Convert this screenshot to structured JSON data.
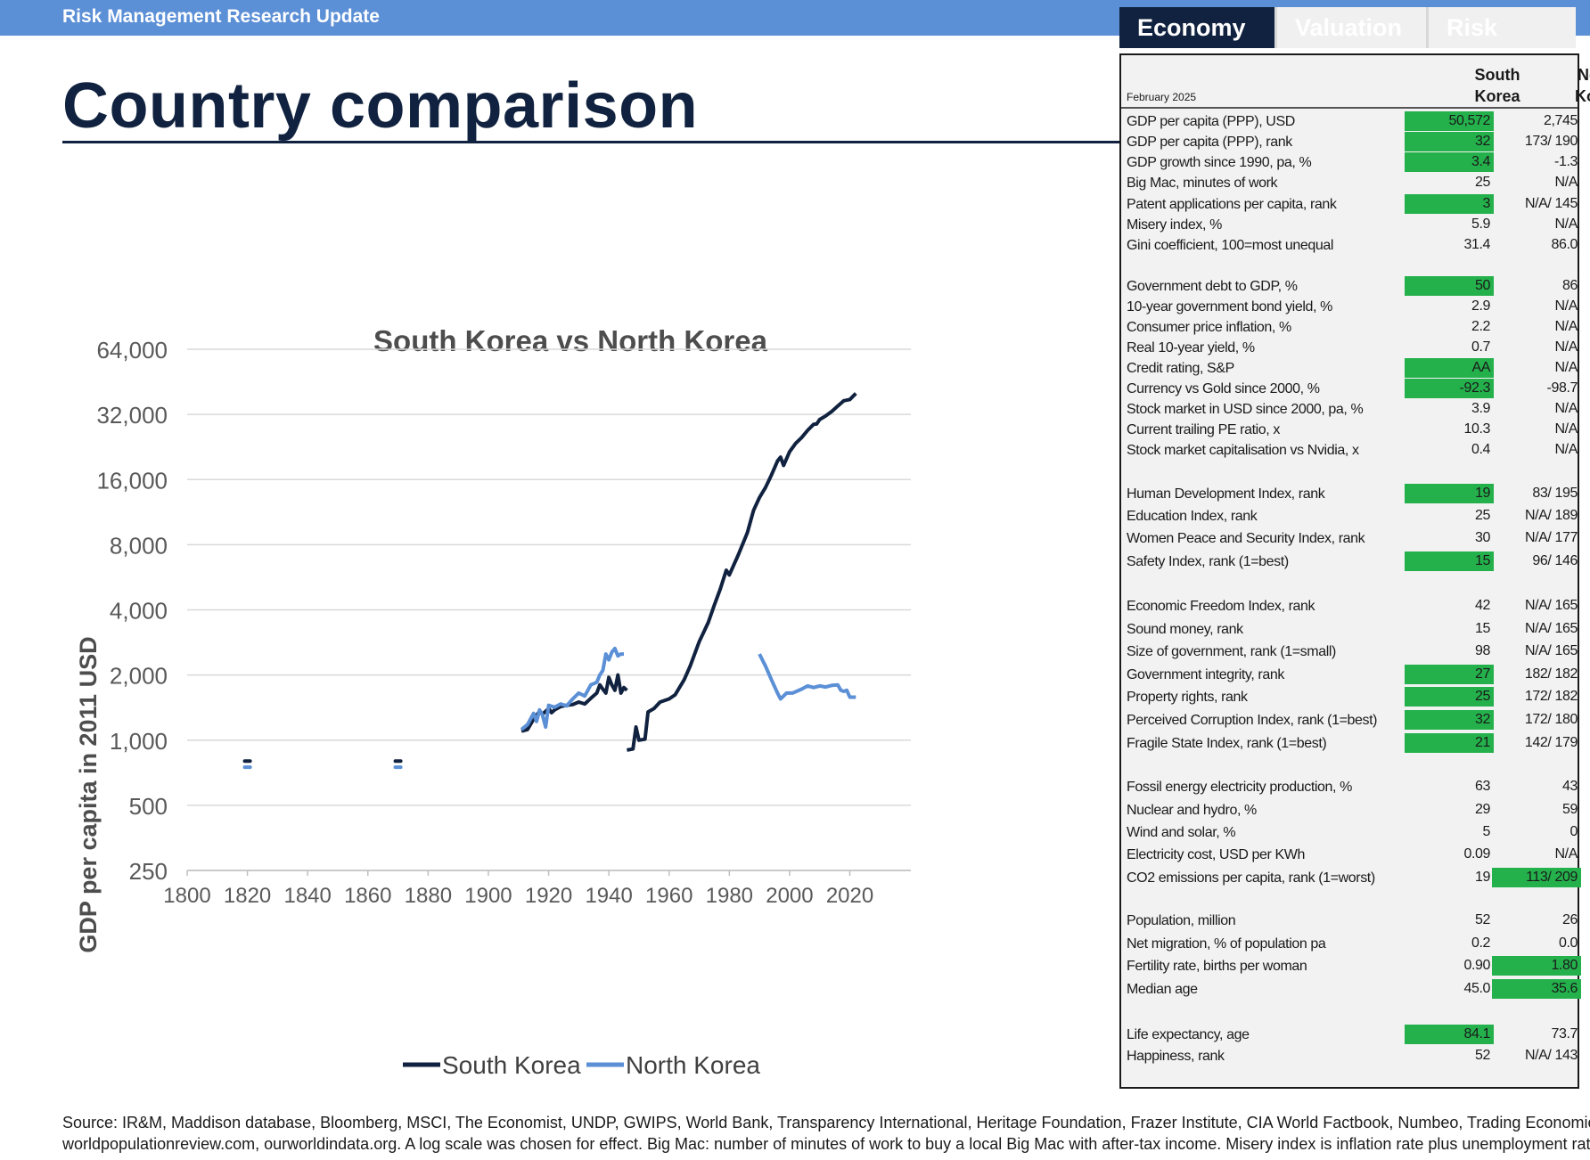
{
  "header": {
    "band_title": "Risk Management Research Update",
    "page_title": "Country comparison"
  },
  "tabs": [
    {
      "label": "Economy"
    },
    {
      "label": "Valuation"
    },
    {
      "label": "Risk"
    }
  ],
  "table": {
    "as_of": "February 2025",
    "col1": "South Korea",
    "col2": "North Korea",
    "col1_l1": "South",
    "col1_l2": "Korea",
    "col2_l1": "North",
    "col2_l2": "Korea",
    "rows": [
      {
        "label": "GDP per capita (PPP), USD",
        "sk": "50,572",
        "nk": "2,745",
        "hl": "sk"
      },
      {
        "label": "GDP per capita (PPP), rank",
        "sk": "32",
        "nk": "173/ 190",
        "hl": "sk"
      },
      {
        "label": "GDP growth since 1990, pa, %",
        "sk": "3.4",
        "nk": "-1.3",
        "hl": "sk"
      },
      {
        "label": "Big Mac, minutes of work",
        "sk": "25",
        "nk": "N/A",
        "hl": ""
      },
      {
        "label": "Patent applications per capita, rank",
        "sk": "3",
        "nk": "N/A/ 145",
        "hl": "sk"
      },
      {
        "label": "Misery index, %",
        "sk": "5.9",
        "nk": "N/A",
        "hl": ""
      },
      {
        "label": "Gini coefficient, 100=most unequal",
        "sk": "31.4",
        "nk": "86.0",
        "hl": ""
      },
      {
        "label": "Government debt to GDP, %",
        "sk": "50",
        "nk": "86",
        "hl": "sk"
      },
      {
        "label": "10-year government bond yield, %",
        "sk": "2.9",
        "nk": "N/A",
        "hl": ""
      },
      {
        "label": "Consumer price inflation, %",
        "sk": "2.2",
        "nk": "N/A",
        "hl": ""
      },
      {
        "label": "Real 10-year yield, %",
        "sk": "0.7",
        "nk": "N/A",
        "hl": ""
      },
      {
        "label": "Credit rating, S&P",
        "sk": "AA",
        "nk": "N/A",
        "hl": "sk"
      },
      {
        "label": "Currency vs Gold since 2000, %",
        "sk": "-92.3",
        "nk": "-98.7",
        "hl": "sk"
      },
      {
        "label": "Stock market in USD since 2000, pa, %",
        "sk": "3.9",
        "nk": "N/A",
        "hl": ""
      },
      {
        "label": "Current trailing PE ratio, x",
        "sk": "10.3",
        "nk": "N/A",
        "hl": ""
      },
      {
        "label": "Stock market capitalisation vs Nvidia, x",
        "sk": "0.4",
        "nk": "N/A",
        "hl": ""
      },
      {
        "label": "Human Development Index, rank",
        "sk": "19",
        "nk": "83/ 195",
        "hl": "sk"
      },
      {
        "label": "Education Index, rank",
        "sk": "25",
        "nk": "N/A/ 189",
        "hl": ""
      },
      {
        "label": "Women Peace and Security Index, rank",
        "sk": "30",
        "nk": "N/A/ 177",
        "hl": ""
      },
      {
        "label": "Safety Index, rank (1=best)",
        "sk": "15",
        "nk": "96/ 146",
        "hl": "sk"
      },
      {
        "label": "Economic Freedom Index, rank",
        "sk": "42",
        "nk": "N/A/ 165",
        "hl": ""
      },
      {
        "label": "Sound money, rank",
        "sk": "15",
        "nk": "N/A/ 165",
        "hl": ""
      },
      {
        "label": "Size of government, rank (1=small)",
        "sk": "98",
        "nk": "N/A/ 165",
        "hl": ""
      },
      {
        "label": "Government integrity, rank",
        "sk": "27",
        "nk": "182/ 182",
        "hl": "sk"
      },
      {
        "label": "Property rights, rank",
        "sk": "25",
        "nk": "172/ 182",
        "hl": "sk"
      },
      {
        "label": "Perceived Corruption Index, rank (1=best)",
        "sk": "32",
        "nk": "172/ 180",
        "hl": "sk"
      },
      {
        "label": "Fragile State Index, rank (1=best)",
        "sk": "21",
        "nk": "142/ 179",
        "hl": "sk"
      },
      {
        "label": "Fossil energy electricity production, %",
        "sk": "63",
        "nk": "43",
        "hl": ""
      },
      {
        "label": "Nuclear and hydro, %",
        "sk": "29",
        "nk": "59",
        "hl": ""
      },
      {
        "label": "Wind and solar, %",
        "sk": "5",
        "nk": "0",
        "hl": ""
      },
      {
        "label": "Electricity cost, USD per KWh",
        "sk": "0.09",
        "nk": "N/A",
        "hl": ""
      },
      {
        "label": "CO2 emissions per capita, rank (1=worst)",
        "sk": "19",
        "nk": "113/ 209",
        "hl": "nk"
      },
      {
        "label": "Population, million",
        "sk": "52",
        "nk": "26",
        "hl": ""
      },
      {
        "label": "Net migration, % of population pa",
        "sk": "0.2",
        "nk": "0.0",
        "hl": ""
      },
      {
        "label": "Fertility rate, births per woman",
        "sk": "0.90",
        "nk": "1.80",
        "hl": "nk"
      },
      {
        "label": "Median age",
        "sk": "45.0",
        "nk": "35.6",
        "hl": "nk"
      },
      {
        "label": "Life expectancy, age",
        "sk": "84.1",
        "nk": "73.7",
        "hl": "sk"
      },
      {
        "label": "Happiness, rank",
        "sk": "52",
        "nk": "N/A/ 143",
        "hl": ""
      }
    ]
  },
  "chart_data": {
    "type": "line",
    "title": "South Korea vs North Korea",
    "xlabel": "",
    "ylabel": "GDP per capita in 2011 USD",
    "x_ticks": [
      "1800",
      "1820",
      "1840",
      "1860",
      "1880",
      "1900",
      "1920",
      "1940",
      "1960",
      "1980",
      "2000",
      "2020"
    ],
    "y_ticks": [
      "250",
      "500",
      "1,000",
      "2,000",
      "4,000",
      "8,000",
      "16,000",
      "32,000",
      "64,000"
    ],
    "y_scale": "log2",
    "xlim": [
      1800,
      2040
    ],
    "ylim": [
      250,
      64000
    ],
    "legend": "bottom",
    "colors": {
      "south": "#10223f",
      "north": "#5b8fd6",
      "highlight": "#24b14c",
      "band": "#5b8fd6",
      "grid": "#d9d9d9"
    },
    "series": [
      {
        "name": "South Korea",
        "segments": [
          [
            [
              1820,
              800
            ]
          ],
          [
            [
              1870,
              800
            ]
          ],
          [
            [
              1911,
              1100
            ],
            [
              1913,
              1120
            ],
            [
              1915,
              1250
            ],
            [
              1917,
              1360
            ],
            [
              1918,
              1320
            ],
            [
              1920,
              1400
            ],
            [
              1921,
              1340
            ],
            [
              1922,
              1380
            ],
            [
              1924,
              1430
            ],
            [
              1926,
              1450
            ],
            [
              1928,
              1460
            ],
            [
              1930,
              1500
            ],
            [
              1932,
              1470
            ],
            [
              1934,
              1560
            ],
            [
              1936,
              1650
            ],
            [
              1937,
              1800
            ],
            [
              1938,
              1720
            ],
            [
              1939,
              1650
            ],
            [
              1940,
              1950
            ],
            [
              1941,
              1800
            ],
            [
              1942,
              1700
            ],
            [
              1943,
              2000
            ],
            [
              1944,
              1650
            ],
            [
              1945,
              1750
            ],
            [
              1946,
              1700
            ]
          ],
          [
            [
              1946,
              900
            ],
            [
              1948,
              910
            ],
            [
              1949,
              1150
            ],
            [
              1950,
              1000
            ],
            [
              1952,
              1010
            ],
            [
              1953,
              1350
            ],
            [
              1955,
              1400
            ],
            [
              1957,
              1500
            ],
            [
              1960,
              1550
            ],
            [
              1962,
              1620
            ],
            [
              1965,
              1900
            ],
            [
              1967,
              2200
            ],
            [
              1970,
              2850
            ],
            [
              1973,
              3500
            ],
            [
              1975,
              4200
            ],
            [
              1977,
              5000
            ],
            [
              1979,
              6100
            ],
            [
              1980,
              5800
            ],
            [
              1983,
              7200
            ],
            [
              1986,
              9100
            ],
            [
              1988,
              11500
            ],
            [
              1990,
              13200
            ],
            [
              1992,
              14700
            ],
            [
              1994,
              16800
            ],
            [
              1996,
              19500
            ],
            [
              1997,
              20300
            ],
            [
              1998,
              18600
            ],
            [
              2000,
              21500
            ],
            [
              2002,
              23500
            ],
            [
              2004,
              25000
            ],
            [
              2006,
              27000
            ],
            [
              2008,
              28800
            ],
            [
              2009,
              28900
            ],
            [
              2010,
              30300
            ],
            [
              2012,
              31500
            ],
            [
              2014,
              33000
            ],
            [
              2016,
              35000
            ],
            [
              2018,
              37000
            ],
            [
              2020,
              37500
            ],
            [
              2022,
              40000
            ]
          ]
        ]
      },
      {
        "name": "North Korea",
        "segments": [
          [
            [
              1820,
              750
            ]
          ],
          [
            [
              1870,
              750
            ]
          ],
          [
            [
              1911,
              1120
            ],
            [
              1913,
              1180
            ],
            [
              1915,
              1330
            ],
            [
              1916,
              1220
            ],
            [
              1917,
              1380
            ],
            [
              1918,
              1300
            ],
            [
              1919,
              1150
            ],
            [
              1920,
              1450
            ],
            [
              1922,
              1420
            ],
            [
              1924,
              1470
            ],
            [
              1926,
              1440
            ],
            [
              1928,
              1550
            ],
            [
              1930,
              1650
            ],
            [
              1932,
              1600
            ],
            [
              1934,
              1800
            ],
            [
              1936,
              1850
            ],
            [
              1937,
              2000
            ],
            [
              1938,
              2100
            ],
            [
              1939,
              2500
            ],
            [
              1940,
              2350
            ],
            [
              1941,
              2550
            ],
            [
              1942,
              2650
            ],
            [
              1943,
              2450
            ],
            [
              1944,
              2500
            ],
            [
              1945,
              2500
            ]
          ],
          [
            [
              1990,
              2500
            ],
            [
              1992,
              2200
            ],
            [
              1994,
              1900
            ],
            [
              1996,
              1650
            ],
            [
              1997,
              1550
            ],
            [
              1998,
              1600
            ],
            [
              1999,
              1650
            ],
            [
              2001,
              1650
            ],
            [
              2004,
              1720
            ],
            [
              2006,
              1780
            ],
            [
              2008,
              1750
            ],
            [
              2010,
              1780
            ],
            [
              2012,
              1760
            ],
            [
              2014,
              1790
            ],
            [
              2016,
              1800
            ],
            [
              2017,
              1700
            ],
            [
              2018,
              1680
            ],
            [
              2019,
              1700
            ],
            [
              2020,
              1580
            ],
            [
              2022,
              1580
            ]
          ]
        ]
      }
    ]
  },
  "footer": {
    "line1": "Source: IR&M, Maddison database, Bloomberg, MSCI, The Economist, UNDP, GWIPS, World Bank, Transparency International, Heritage Foundation, Frazer Institute, CIA World Factbook, Numbeo, Trading Economics,",
    "line2": "worldpopulationreview.com, ourworldindata.org. A log scale was chosen for effect. Big Mac: number of minutes of work to buy a local Big Mac with after-tax income. Misery index is inflation rate plus unemployment rate."
  }
}
